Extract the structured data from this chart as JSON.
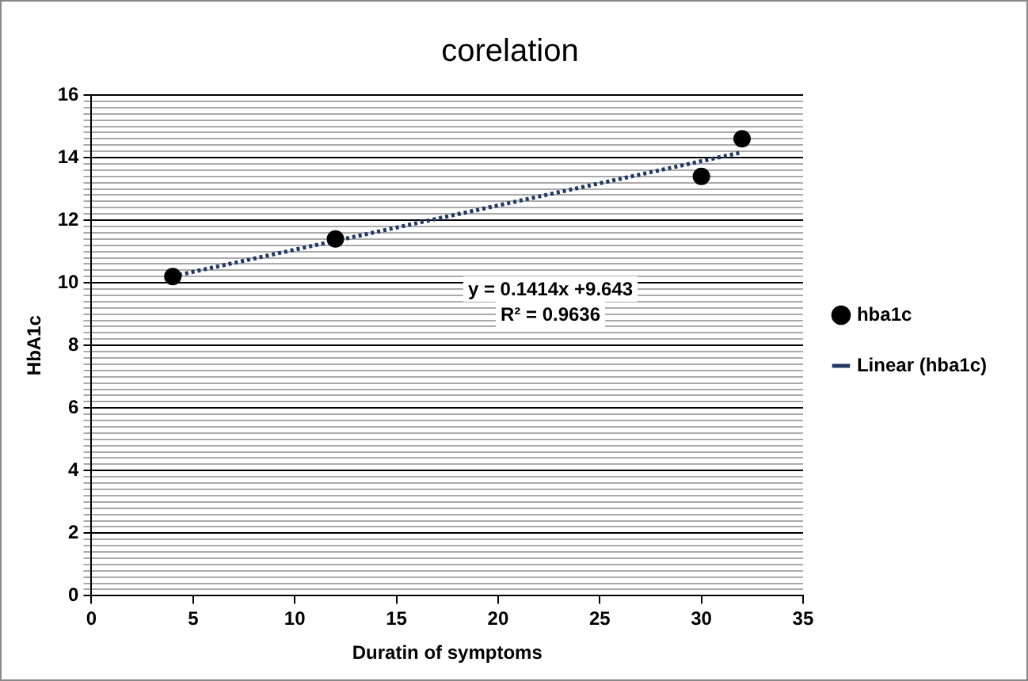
{
  "chart_data": {
    "type": "scatter",
    "title": "corelation",
    "xlabel": "Duratin of symptoms",
    "ylabel": "HbA1c",
    "x": [
      4,
      12,
      30,
      32
    ],
    "series": [
      {
        "name": "hba1c",
        "color": "#000000",
        "values": [
          10.2,
          11.4,
          13.4,
          14.6
        ],
        "marker": "circle"
      },
      {
        "name": "Linear (hba1c)",
        "type": "line",
        "color": "#1f3864",
        "x": [
          4,
          32
        ],
        "values": [
          10.21,
          14.17
        ],
        "marker": "none",
        "line_style": "dotted"
      }
    ],
    "xlim": [
      0,
      35
    ],
    "xticks": [
      0,
      5,
      10,
      15,
      20,
      25,
      30,
      35
    ],
    "ylim": [
      0,
      16
    ],
    "yticks": [
      0,
      {
        "value": 0.2,
        "label": null
      },
      {
        "value": 0.4,
        "label": null
      },
      {
        "value": 0.6,
        "label": null
      },
      {
        "value": 0.8,
        "label": null
      },
      {
        "value": 1,
        "label": null
      },
      {
        "value": 1.2,
        "label": null
      },
      {
        "value": 1.4,
        "label": null
      },
      {
        "value": 1.6,
        "label": null
      },
      {
        "value": 1.8,
        "label": null
      },
      2,
      {
        "value": 2.2,
        "label": null
      },
      {
        "value": 2.4,
        "label": null
      },
      {
        "value": 2.6,
        "label": null
      },
      {
        "value": 2.8,
        "label": null
      },
      {
        "value": 3,
        "label": null
      },
      {
        "value": 3.2,
        "label": null
      },
      {
        "value": 3.4,
        "label": null
      },
      {
        "value": 3.6,
        "label": null
      },
      {
        "value": 3.8,
        "label": null
      },
      4,
      {
        "value": 4.2,
        "label": null
      },
      {
        "value": 4.4,
        "label": null
      },
      {
        "value": 4.6,
        "label": null
      },
      {
        "value": 4.8,
        "label": null
      },
      {
        "value": 5,
        "label": null
      },
      {
        "value": 5.2,
        "label": null
      },
      {
        "value": 5.4,
        "label": null
      },
      {
        "value": 5.6,
        "label": null
      },
      {
        "value": 5.8,
        "label": null
      },
      6,
      {
        "value": 6.2,
        "label": null
      },
      {
        "value": 6.4,
        "label": null
      },
      {
        "value": 6.6,
        "label": null
      },
      {
        "value": 6.8,
        "label": null
      },
      {
        "value": 7,
        "label": null
      },
      {
        "value": 7.2,
        "label": null
      },
      {
        "value": 7.4,
        "label": null
      },
      {
        "value": 7.6,
        "label": null
      },
      {
        "value": 7.8,
        "label": null
      },
      8,
      {
        "value": 8.2,
        "label": null
      },
      {
        "value": 8.4,
        "label": null
      },
      {
        "value": 8.6,
        "label": null
      },
      {
        "value": 8.8,
        "label": null
      },
      {
        "value": 9,
        "label": null
      },
      {
        "value": 9.2,
        "label": null
      },
      {
        "value": 9.4,
        "label": null
      },
      {
        "value": 9.6,
        "label": null
      },
      {
        "value": 9.8,
        "label": null
      },
      10,
      {
        "value": 10.2,
        "label": null
      },
      {
        "value": 10.4,
        "label": null
      },
      {
        "value": 10.6,
        "label": null
      },
      {
        "value": 10.8,
        "label": null
      },
      {
        "value": 11,
        "label": null
      },
      {
        "value": 11.2,
        "label": null
      },
      {
        "value": 11.4,
        "label": null
      },
      {
        "value": 11.6,
        "label": null
      },
      {
        "value": 11.8,
        "label": null
      },
      12,
      {
        "value": 12.2,
        "label": null
      },
      {
        "value": 12.4,
        "label": null
      },
      {
        "value": 12.6,
        "label": null
      },
      {
        "value": 12.8,
        "label": null
      },
      {
        "value": 13,
        "label": null
      },
      {
        "value": 13.2,
        "label": null
      },
      {
        "value": 13.4,
        "label": null
      },
      {
        "value": 13.6,
        "label": null
      },
      {
        "value": 13.8,
        "label": null
      },
      14,
      {
        "value": 14.2,
        "label": null
      },
      {
        "value": 14.4,
        "label": null
      },
      {
        "value": 14.6,
        "label": null
      },
      {
        "value": 14.8,
        "label": null
      },
      {
        "value": 15,
        "label": null
      },
      {
        "value": 15.2,
        "label": null
      },
      {
        "value": 15.4,
        "label": null
      },
      {
        "value": 15.6,
        "label": null
      },
      {
        "value": 15.8,
        "label": null
      },
      16
    ],
    "grid": "y",
    "legend": "right",
    "annotations": [
      "y = 0.1414x +9.643",
      "R² = 0.9636"
    ]
  }
}
